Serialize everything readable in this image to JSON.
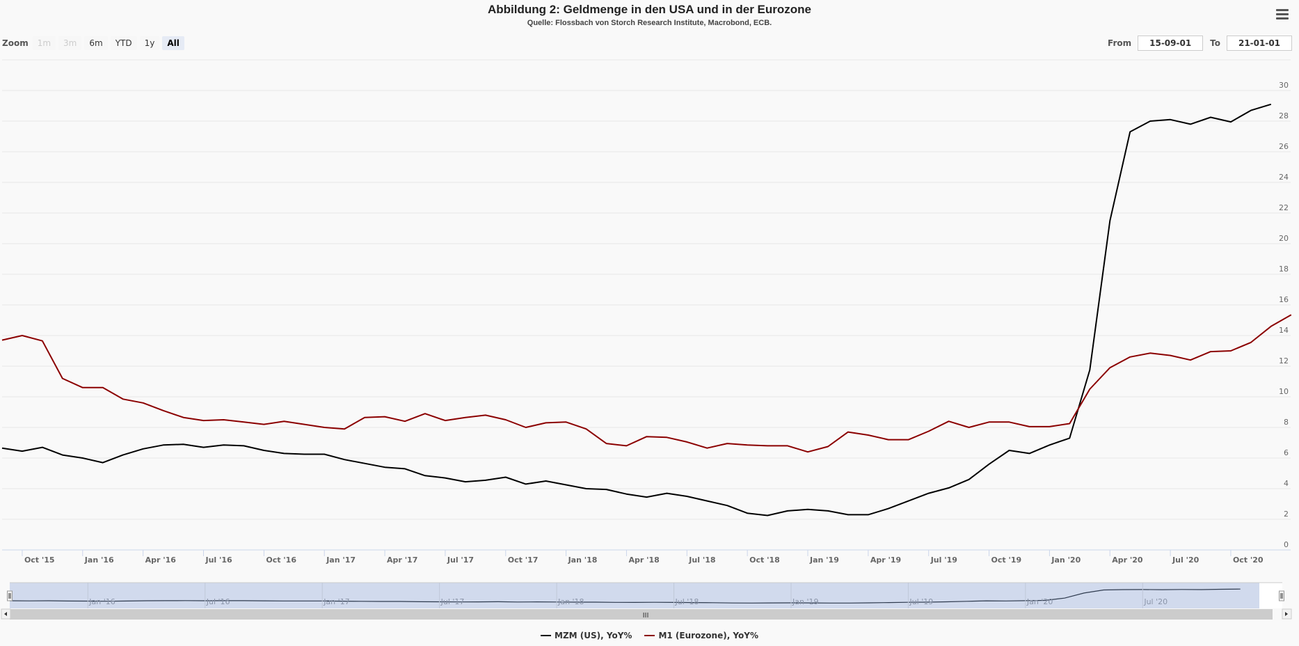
{
  "header": {
    "title": "Abbildung 2: Geldmenge in den USA und in der Eurozone",
    "subtitle": "Quelle: Flossbach von Storch Research Institute, Macrobond, ECB.",
    "menu_icon": "hamburger-menu-icon"
  },
  "range_selector": {
    "zoom_label": "Zoom",
    "buttons": [
      {
        "label": "1m",
        "state": "disabled"
      },
      {
        "label": "3m",
        "state": "disabled"
      },
      {
        "label": "6m",
        "state": "normal"
      },
      {
        "label": "YTD",
        "state": "normal"
      },
      {
        "label": "1y",
        "state": "normal"
      },
      {
        "label": "All",
        "state": "active"
      }
    ],
    "from_label": "From",
    "from_value": "15-09-01",
    "to_label": "To",
    "to_value": "21-01-01"
  },
  "navigator": {
    "labels": [
      "Jan '16",
      "Jul '16",
      "Jan '17",
      "Jul '17",
      "Jan '18",
      "Jul '18",
      "Jan '19",
      "Jul '19",
      "Jan '20",
      "Jul '20"
    ],
    "scrollbar_grip": "III"
  },
  "chart_data": {
    "type": "line",
    "title": "Abbildung 2: Geldmenge in den USA und in der Eurozone",
    "subtitle": "Quelle: Flossbach von Storch Research Institute, Macrobond, ECB.",
    "xlabel": "",
    "ylabel": "",
    "ylim": [
      0,
      32
    ],
    "y_ticks": [
      0,
      2,
      4,
      6,
      8,
      10,
      12,
      14,
      16,
      18,
      20,
      22,
      24,
      26,
      28,
      30
    ],
    "x_range": [
      "2015-09",
      "2021-01"
    ],
    "x_tick_labels": [
      "Oct '15",
      "Jan '16",
      "Apr '16",
      "Jul '16",
      "Oct '16",
      "Jan '17",
      "Apr '17",
      "Jul '17",
      "Oct '17",
      "Jan '18",
      "Apr '18",
      "Jul '18",
      "Oct '18",
      "Jan '19",
      "Apr '19",
      "Jul '19",
      "Oct '19",
      "Jan '20",
      "Apr '20",
      "Jul '20",
      "Oct '20"
    ],
    "grid": true,
    "legend_position": "bottom-center",
    "series": [
      {
        "name": "MZM (US), YoY%",
        "color": "#000000",
        "start": "2015-09",
        "values": [
          6.65,
          6.45,
          6.7,
          6.2,
          6.0,
          5.7,
          6.2,
          6.6,
          6.85,
          6.9,
          6.7,
          6.85,
          6.8,
          6.5,
          6.3,
          6.25,
          6.25,
          5.9,
          5.65,
          5.4,
          5.3,
          4.85,
          4.7,
          4.45,
          4.55,
          4.75,
          4.3,
          4.5,
          4.25,
          4.0,
          3.95,
          3.65,
          3.45,
          3.7,
          3.5,
          3.2,
          2.9,
          2.4,
          2.25,
          2.55,
          2.65,
          2.55,
          2.3,
          2.3,
          2.7,
          3.2,
          3.7,
          4.05,
          4.6,
          5.6,
          6.5,
          6.3,
          6.85,
          7.3,
          11.75,
          21.5,
          27.3,
          28.0,
          28.1,
          27.8,
          28.25,
          27.95,
          28.7,
          29.1
        ]
      },
      {
        "name": "M1 (Eurozone), YoY%",
        "color": "#8b0000",
        "start": "2015-09",
        "values": [
          13.7,
          14.0,
          13.65,
          11.2,
          10.6,
          10.6,
          9.85,
          9.6,
          9.1,
          8.65,
          8.45,
          8.5,
          8.35,
          8.2,
          8.4,
          8.2,
          8.0,
          7.9,
          8.65,
          8.7,
          8.4,
          8.9,
          8.45,
          8.65,
          8.8,
          8.5,
          8.0,
          8.3,
          8.35,
          7.9,
          6.95,
          6.8,
          7.4,
          7.35,
          7.05,
          6.65,
          6.95,
          6.85,
          6.8,
          6.8,
          6.4,
          6.75,
          7.7,
          7.5,
          7.2,
          7.2,
          7.75,
          8.4,
          8.0,
          8.35,
          8.35,
          8.05,
          8.05,
          8.25,
          10.5,
          11.9,
          12.6,
          12.85,
          12.7,
          12.4,
          12.95,
          13.0,
          13.55,
          14.6,
          15.35
        ]
      }
    ]
  }
}
